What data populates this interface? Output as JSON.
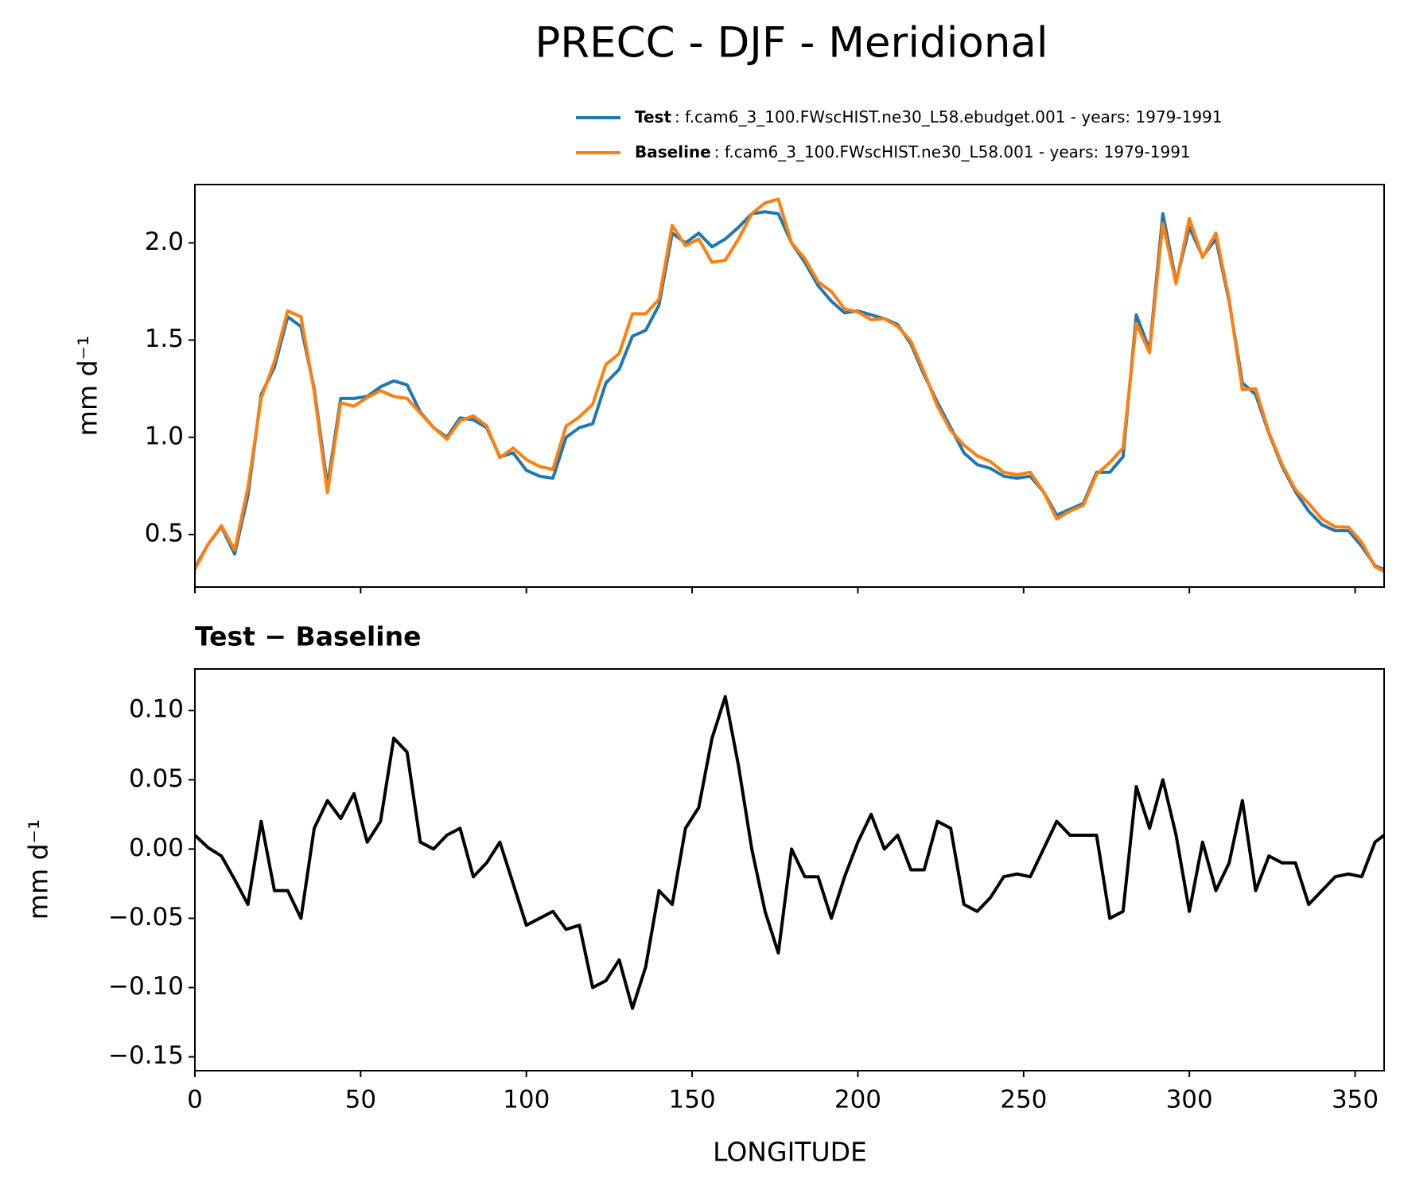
{
  "chart_data": [
    {
      "type": "line",
      "title": "PRECC - DJF - Meridional",
      "ylabel": "mm d⁻¹",
      "x": [
        0,
        4,
        8,
        12,
        16,
        20,
        24,
        28,
        32,
        36,
        40,
        44,
        48,
        52,
        56,
        60,
        64,
        68,
        72,
        76,
        80,
        84,
        88,
        92,
        96,
        100,
        104,
        108,
        112,
        116,
        120,
        124,
        128,
        132,
        136,
        140,
        144,
        148,
        152,
        156,
        160,
        164,
        168,
        172,
        176,
        180,
        184,
        188,
        192,
        196,
        200,
        204,
        208,
        212,
        216,
        220,
        224,
        228,
        232,
        236,
        240,
        244,
        248,
        252,
        256,
        260,
        264,
        268,
        272,
        276,
        280,
        284,
        288,
        292,
        296,
        300,
        304,
        308,
        312,
        316,
        320,
        324,
        328,
        332,
        336,
        340,
        344,
        348,
        352,
        356,
        358.75
      ],
      "series": [
        {
          "name": "Test",
          "description": ": f.cam6_3_100.FWscHIST.ne30_L58.ebudget.001 - years: 1979-1991",
          "color": "#1f77b4",
          "values": [
            0.33,
            0.45,
            0.54,
            0.4,
            0.7,
            1.22,
            1.36,
            1.62,
            1.57,
            1.25,
            0.75,
            1.2,
            1.2,
            1.21,
            1.26,
            1.29,
            1.27,
            1.13,
            1.05,
            1.0,
            1.1,
            1.09,
            1.05,
            0.9,
            0.92,
            0.83,
            0.8,
            0.79,
            1.0,
            1.05,
            1.07,
            1.28,
            1.35,
            1.52,
            1.55,
            1.68,
            2.05,
            2.0,
            2.05,
            1.98,
            2.02,
            2.08,
            2.15,
            2.16,
            2.15,
            2.0,
            1.9,
            1.78,
            1.7,
            1.64,
            1.65,
            1.63,
            1.61,
            1.58,
            1.48,
            1.32,
            1.18,
            1.05,
            0.92,
            0.86,
            0.84,
            0.8,
            0.79,
            0.8,
            0.72,
            0.6,
            0.63,
            0.66,
            0.82,
            0.82,
            0.9,
            1.63,
            1.45,
            2.15,
            1.8,
            2.08,
            1.93,
            2.02,
            1.7,
            1.28,
            1.22,
            1.02,
            0.85,
            0.72,
            0.62,
            0.55,
            0.52,
            0.52,
            0.44,
            0.34,
            0.32
          ]
        },
        {
          "name": "Baseline",
          "description": ": f.cam6_3_100.FWscHIST.ne30_L58.001 - years: 1979-1991",
          "color": "#ff7f0e",
          "values": [
            0.32,
            0.45,
            0.545,
            0.42,
            0.74,
            1.2,
            1.39,
            1.65,
            1.62,
            1.235,
            0.715,
            1.178,
            1.16,
            1.205,
            1.24,
            1.21,
            1.2,
            1.125,
            1.05,
            0.99,
            1.085,
            1.11,
            1.06,
            0.895,
            0.945,
            0.885,
            0.85,
            0.835,
            1.058,
            1.105,
            1.17,
            1.375,
            1.43,
            1.635,
            1.635,
            1.71,
            2.09,
            1.985,
            2.02,
            1.9,
            1.91,
            2.02,
            2.15,
            2.205,
            2.225,
            2.0,
            1.92,
            1.8,
            1.75,
            1.66,
            1.645,
            1.605,
            1.61,
            1.57,
            1.495,
            1.335,
            1.16,
            1.035,
            0.96,
            0.905,
            0.875,
            0.82,
            0.808,
            0.82,
            0.72,
            0.58,
            0.62,
            0.65,
            0.81,
            0.87,
            0.945,
            1.585,
            1.435,
            2.1,
            1.79,
            2.125,
            1.925,
            2.05,
            1.71,
            1.245,
            1.25,
            1.025,
            0.86,
            0.73,
            0.66,
            0.58,
            0.54,
            0.538,
            0.46,
            0.335,
            0.31
          ]
        }
      ],
      "xlim": [
        0,
        358.75
      ],
      "xticks": [
        0,
        50,
        100,
        150,
        200,
        250,
        300,
        350
      ],
      "ylim": [
        0.23,
        2.3
      ],
      "yticks": [
        0.5,
        {
          "value": 1.0,
          "label": "1.0"
        },
        1.5,
        {
          "value": 2.0,
          "label": "2.0"
        }
      ]
    },
    {
      "type": "line",
      "title": "Test − Baseline",
      "ylabel": "mm d⁻¹",
      "xlabel": "LONGITUDE",
      "x": [
        0,
        4,
        8,
        12,
        16,
        20,
        24,
        28,
        32,
        36,
        40,
        44,
        48,
        52,
        56,
        60,
        64,
        68,
        72,
        76,
        80,
        84,
        88,
        92,
        96,
        100,
        104,
        108,
        112,
        116,
        120,
        124,
        128,
        132,
        136,
        140,
        144,
        148,
        152,
        156,
        160,
        164,
        168,
        172,
        176,
        180,
        184,
        188,
        192,
        196,
        200,
        204,
        208,
        212,
        216,
        220,
        224,
        228,
        232,
        236,
        240,
        244,
        248,
        252,
        256,
        260,
        264,
        268,
        272,
        276,
        280,
        284,
        288,
        292,
        296,
        300,
        304,
        308,
        312,
        316,
        320,
        324,
        328,
        332,
        336,
        340,
        344,
        348,
        352,
        356,
        358.75
      ],
      "series": [
        {
          "color": "#000000",
          "values": [
            0.01,
            0.001,
            -0.005,
            -0.022,
            -0.04,
            0.02,
            -0.03,
            -0.03,
            -0.05,
            0.015,
            0.035,
            0.022,
            0.04,
            0.005,
            0.02,
            0.08,
            0.07,
            0.005,
            0.0,
            0.01,
            0.015,
            -0.02,
            -0.01,
            0.005,
            -0.025,
            -0.055,
            -0.05,
            -0.045,
            -0.058,
            -0.055,
            -0.1,
            -0.095,
            -0.08,
            -0.115,
            -0.085,
            -0.03,
            -0.04,
            0.015,
            0.03,
            0.08,
            0.11,
            0.06,
            0.0,
            -0.045,
            -0.075,
            0.0,
            -0.02,
            -0.02,
            -0.05,
            -0.02,
            0.005,
            0.025,
            0.0,
            0.01,
            -0.015,
            -0.015,
            0.02,
            0.015,
            -0.04,
            -0.045,
            -0.035,
            -0.02,
            -0.018,
            -0.02,
            0.0,
            0.02,
            0.01,
            0.01,
            0.01,
            -0.05,
            -0.045,
            0.045,
            0.015,
            0.05,
            0.01,
            -0.045,
            0.005,
            -0.03,
            -0.01,
            0.035,
            -0.03,
            -0.005,
            -0.01,
            -0.01,
            -0.04,
            -0.03,
            -0.02,
            -0.018,
            -0.02,
            0.005,
            0.01
          ]
        }
      ],
      "xlim": [
        0,
        358.75
      ],
      "xticks": [
        0,
        50,
        100,
        150,
        200,
        250,
        300,
        350
      ],
      "ylim": [
        -0.16,
        0.13
      ],
      "yticks": [
        {
          "value": -0.15,
          "label": "−0.15"
        },
        {
          "value": -0.1,
          "label": "−0.10"
        },
        {
          "value": -0.05,
          "label": "−0.05"
        },
        {
          "value": 0,
          "label": "0.00"
        },
        0.05,
        {
          "value": 0.1,
          "label": "0.10"
        }
      ]
    }
  ]
}
